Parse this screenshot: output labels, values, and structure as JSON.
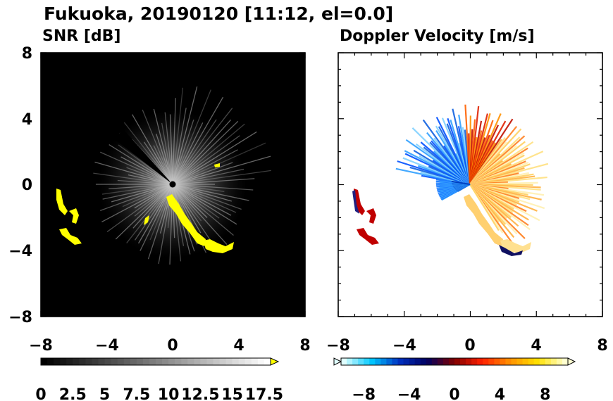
{
  "title": "Fukuoka, 20190120 [11:12, el=0.0]",
  "chart_data": [
    {
      "type": "heatmap",
      "title": "SNR [dB]",
      "xlim": [
        -8,
        8
      ],
      "ylim": [
        -8,
        8
      ],
      "xticks": [
        "−8",
        "−4",
        "0",
        "4",
        "8"
      ],
      "yticks": [
        "8",
        "4",
        "0",
        "−4",
        "−8"
      ],
      "background": "#000000",
      "colorbar": {
        "min": 0,
        "max": 18,
        "labels": [
          "0",
          "2.5",
          "5",
          "7.5",
          "10",
          "12.5",
          "15",
          "17.5"
        ],
        "colors": [
          "#000000",
          "#ffffff"
        ],
        "over_color": "#ffff00",
        "extend": "max"
      },
      "features": {
        "radar_center": [
          0,
          0
        ],
        "strong_echo_color": "#ffff00"
      }
    },
    {
      "type": "heatmap",
      "title": "Doppler Velocity [m/s]",
      "xlim": [
        -8,
        8
      ],
      "ylim": [
        -8,
        8
      ],
      "xticks": [
        "−8",
        "−4",
        "0",
        "4",
        "8"
      ],
      "yticks": [],
      "background": "#ffffff",
      "colorbar": {
        "min": -10,
        "max": 10,
        "labels": [
          "−8",
          "−4",
          "0",
          "4",
          "8"
        ],
        "colors": [
          "#e0ffff",
          "#00c8ff",
          "#0030c0",
          "#000060",
          "#800000",
          "#ff2000",
          "#ff9000",
          "#ffe000",
          "#ffffd0"
        ],
        "extend": "both"
      },
      "features": {
        "approaching_color": "#0060ff",
        "receding_color": "#ff4000"
      }
    }
  ]
}
